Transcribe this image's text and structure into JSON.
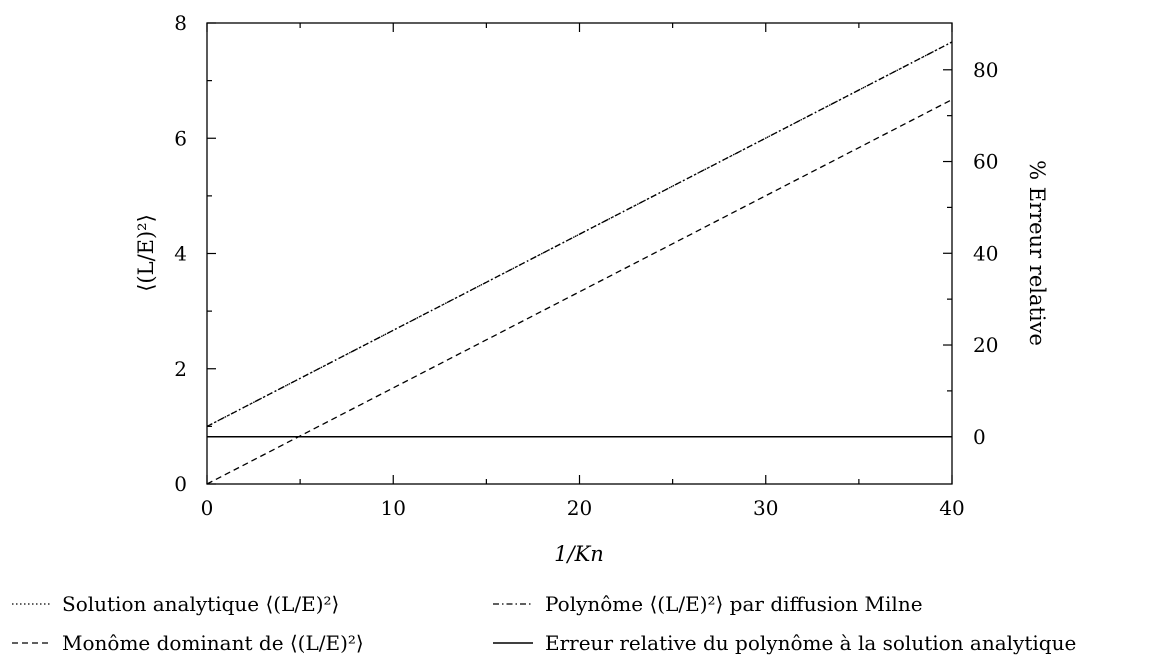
{
  "chart_data": {
    "type": "line",
    "title": "",
    "xlabel": "1/Kn",
    "ylabel": "⟨(L/E)²⟩",
    "y2label": "% Erreur relative",
    "xlim": [
      0,
      40
    ],
    "ylim": [
      0,
      8
    ],
    "y2lim": [
      -10.3,
      90.2
    ],
    "xticks": [
      0,
      10,
      20,
      30,
      40
    ],
    "yticks": [
      0,
      2,
      4,
      6,
      8
    ],
    "y2ticks": [
      0,
      20,
      40,
      60,
      80
    ],
    "grid": false,
    "legend_position": "bottom",
    "series": [
      {
        "name": "Solution analytique ⟨(L/E)²⟩",
        "axis": "left",
        "style": "dotted",
        "x": [
          0,
          40
        ],
        "y": [
          1.0,
          7.67
        ]
      },
      {
        "name": "Polynôme ⟨(L/E)²⟩ par diffusion Milne",
        "axis": "left",
        "style": "dashdot",
        "x": [
          0,
          40
        ],
        "y": [
          1.0,
          7.67
        ]
      },
      {
        "name": "Monôme dominant de ⟨(L/E)²⟩",
        "axis": "left",
        "style": "dashed",
        "x": [
          0,
          40
        ],
        "y": [
          0.0,
          6.67
        ]
      },
      {
        "name": "Erreur relative du polynôme à la solution analytique",
        "axis": "right",
        "style": "solid",
        "x": [
          0,
          40
        ],
        "y": [
          0,
          0
        ]
      }
    ]
  }
}
